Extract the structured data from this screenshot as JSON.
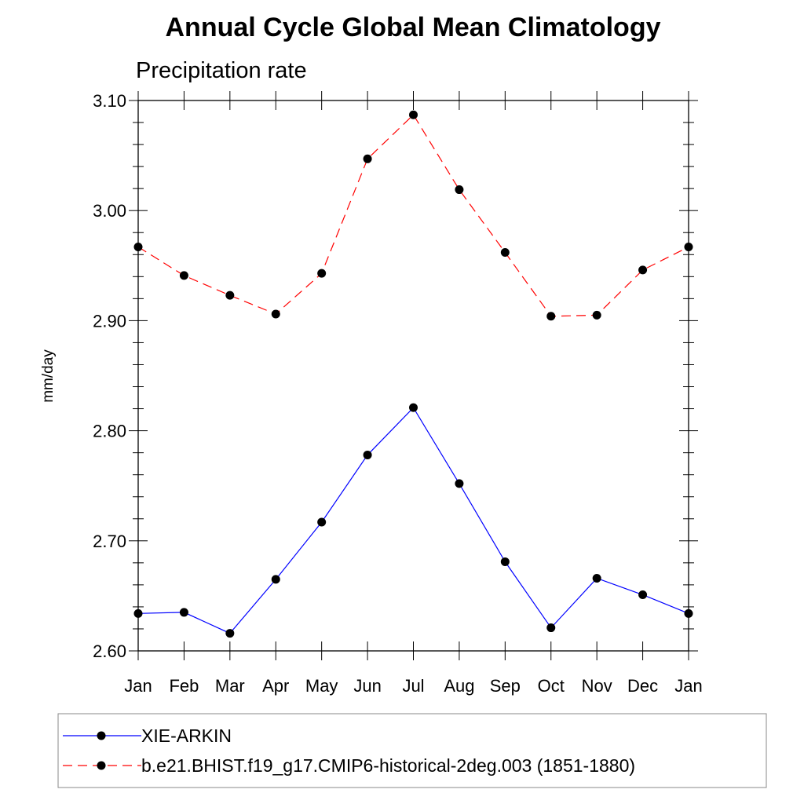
{
  "chart_data": {
    "type": "line",
    "title": "Annual Cycle Global Mean Climatology",
    "subtitle": "Precipitation rate",
    "xlabel": "",
    "ylabel": "mm/day",
    "categories": [
      "Jan",
      "Feb",
      "Mar",
      "Apr",
      "May",
      "Jun",
      "Jul",
      "Aug",
      "Sep",
      "Oct",
      "Nov",
      "Dec",
      "Jan"
    ],
    "ylim": [
      2.6,
      3.1
    ],
    "yticks": [
      2.6,
      2.7,
      2.8,
      2.9,
      3.0,
      3.1
    ],
    "ytick_labels": [
      "2.60",
      "2.70",
      "2.80",
      "2.90",
      "3.00",
      "3.10"
    ],
    "grid": false,
    "legend_position": "bottom",
    "series": [
      {
        "name": "XIE-ARKIN",
        "color": "#0000ff",
        "line_style": "solid",
        "marker": "filled-circle",
        "values": [
          2.634,
          2.635,
          2.616,
          2.665,
          2.717,
          2.778,
          2.821,
          2.752,
          2.681,
          2.621,
          2.666,
          2.651,
          2.634
        ]
      },
      {
        "name": "b.e21.BHIST.f19_g17.CMIP6-historical-2deg.003 (1851-1880)",
        "color": "#ff0000",
        "line_style": "dashed",
        "marker": "filled-circle",
        "values": [
          2.967,
          2.941,
          2.923,
          2.906,
          2.943,
          3.047,
          3.087,
          3.019,
          2.962,
          2.904,
          2.905,
          2.946,
          2.967
        ]
      }
    ]
  }
}
